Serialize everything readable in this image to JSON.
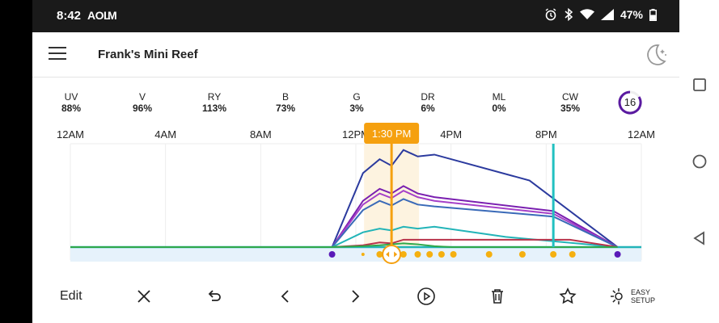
{
  "status_bar": {
    "time": "8:42",
    "notif_aol": "AOL",
    "notif_gmail": "M",
    "battery": "47%"
  },
  "app_bar": {
    "title": "Frank's Mini Reef"
  },
  "channels": [
    {
      "name": "UV",
      "value": "88%"
    },
    {
      "name": "V",
      "value": "96%"
    },
    {
      "name": "RY",
      "value": "113%"
    },
    {
      "name": "B",
      "value": "73%"
    },
    {
      "name": "G",
      "value": "3%"
    },
    {
      "name": "DR",
      "value": "6%"
    },
    {
      "name": "ML",
      "value": "0%"
    },
    {
      "name": "CW",
      "value": "35%"
    }
  ],
  "cloud_level": "16",
  "chart": {
    "time_labels": [
      "12AM",
      "4AM",
      "8AM",
      "12PM",
      "4PM",
      "8PM",
      "12AM"
    ],
    "current_time": "1:30 PM"
  },
  "toolbar": {
    "edit_label": "Edit",
    "easy_setup_line1": "EASY",
    "easy_setup_line2": "SETUP"
  },
  "colors": {
    "accent_orange": "#f5a00f",
    "cursor_teal": "#22c0c0",
    "status_bar_bg": "#1a1a1a"
  },
  "chart_data": {
    "type": "line",
    "x_unit": "hour of day",
    "x_range": [
      0,
      24
    ],
    "y_unit": "percent",
    "series": [
      {
        "name": "UV",
        "color": "#2b3a9e",
        "points": [
          [
            0,
            0
          ],
          [
            11,
            0
          ],
          [
            12.3,
            80
          ],
          [
            13,
            95
          ],
          [
            13.5,
            88
          ],
          [
            14,
            105
          ],
          [
            14.6,
            98
          ],
          [
            15.3,
            100
          ],
          [
            19.3,
            72
          ],
          [
            23,
            0
          ]
        ]
      },
      {
        "name": "V",
        "color": "#7a1fb0",
        "points": [
          [
            0,
            0
          ],
          [
            11,
            0
          ],
          [
            12.3,
            50
          ],
          [
            13,
            63
          ],
          [
            13.5,
            58
          ],
          [
            14,
            66
          ],
          [
            14.6,
            58
          ],
          [
            15.3,
            54
          ],
          [
            20.3,
            39
          ],
          [
            23,
            0
          ]
        ]
      },
      {
        "name": "RY",
        "color": "#a540c8",
        "points": [
          [
            0,
            0
          ],
          [
            11,
            0
          ],
          [
            12.3,
            46
          ],
          [
            13,
            58
          ],
          [
            13.5,
            53
          ],
          [
            14,
            61
          ],
          [
            14.6,
            54
          ],
          [
            15.3,
            50
          ],
          [
            20.3,
            36
          ],
          [
            23,
            0
          ]
        ]
      },
      {
        "name": "B",
        "color": "#3a6ab8",
        "points": [
          [
            0,
            0
          ],
          [
            11,
            0
          ],
          [
            12.3,
            40
          ],
          [
            13,
            50
          ],
          [
            13.5,
            45
          ],
          [
            14,
            52
          ],
          [
            14.6,
            46
          ],
          [
            15.3,
            44
          ],
          [
            20.3,
            33
          ],
          [
            23,
            0
          ]
        ]
      },
      {
        "name": "CW",
        "color": "#22b4b8",
        "points": [
          [
            0,
            0
          ],
          [
            11,
            0
          ],
          [
            12.3,
            16
          ],
          [
            13,
            20
          ],
          [
            13.5,
            18
          ],
          [
            14,
            22
          ],
          [
            14.6,
            20
          ],
          [
            15.3,
            22
          ],
          [
            18.3,
            11
          ],
          [
            23,
            0
          ]
        ]
      },
      {
        "name": "DR",
        "color": "#b8324a",
        "points": [
          [
            0,
            0
          ],
          [
            11,
            0
          ],
          [
            12.3,
            2
          ],
          [
            13,
            5
          ],
          [
            13.5,
            4
          ],
          [
            14,
            8
          ],
          [
            14.6,
            8
          ],
          [
            21,
            8
          ],
          [
            23,
            0
          ]
        ]
      },
      {
        "name": "G",
        "color": "#2ea84a",
        "points": [
          [
            0,
            0
          ],
          [
            11,
            0
          ],
          [
            12.3,
            1
          ],
          [
            13,
            2
          ],
          [
            13.5,
            3
          ],
          [
            14,
            4
          ],
          [
            14.6,
            3
          ],
          [
            15.3,
            1
          ],
          [
            16,
            0
          ],
          [
            23,
            0
          ]
        ]
      }
    ],
    "current_time_hour": 13.5,
    "marker_time_hour": 20.3,
    "event_dots_hours": [
      11,
      12.3,
      13,
      13.5,
      14,
      14.6,
      15.1,
      15.6,
      16.1,
      17.6,
      19,
      20.3,
      21.1,
      23
    ]
  }
}
